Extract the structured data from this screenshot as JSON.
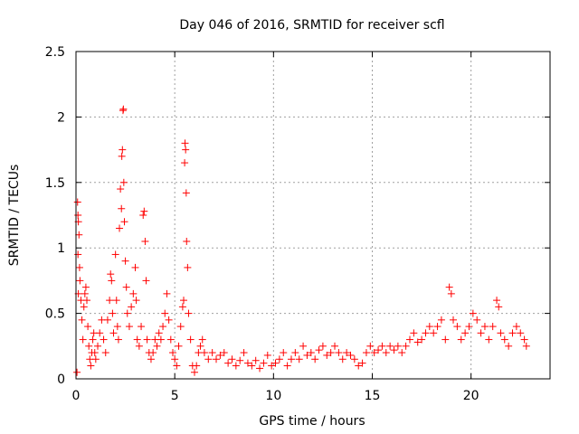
{
  "chart_data": {
    "type": "scatter",
    "title": "Day 046 of 2016, SRMTID for receiver scfl",
    "xlabel": "GPS time / hours",
    "ylabel": "SRMTID / TECUs",
    "xlim": [
      0,
      24
    ],
    "ylim": [
      0,
      2.5
    ],
    "x_ticks": [
      0,
      5,
      10,
      15,
      20
    ],
    "x_tick_labels": [
      "0",
      "5",
      "10",
      "15",
      "20"
    ],
    "y_ticks": [
      0,
      0.5,
      1,
      1.5,
      2,
      2.5
    ],
    "y_tick_labels": [
      "0",
      "0.5",
      "1",
      "1.5",
      "2",
      "2.5"
    ],
    "grid": true,
    "marker": "+",
    "series": [
      {
        "name": "SRMTID",
        "color": "#ff0000",
        "points": [
          [
            0.05,
            0.05
          ],
          [
            0.08,
            1.35
          ],
          [
            0.1,
            1.25
          ],
          [
            0.12,
            1.2
          ],
          [
            0.15,
            1.1
          ],
          [
            0.1,
            0.95
          ],
          [
            0.18,
            0.85
          ],
          [
            0.2,
            0.75
          ],
          [
            0.12,
            0.65
          ],
          [
            0.25,
            0.6
          ],
          [
            0.3,
            0.45
          ],
          [
            0.35,
            0.3
          ],
          [
            0.4,
            0.55
          ],
          [
            0.45,
            0.65
          ],
          [
            0.5,
            0.7
          ],
          [
            0.55,
            0.6
          ],
          [
            0.6,
            0.4
          ],
          [
            0.65,
            0.25
          ],
          [
            0.7,
            0.15
          ],
          [
            0.75,
            0.1
          ],
          [
            0.8,
            0.2
          ],
          [
            0.85,
            0.3
          ],
          [
            0.9,
            0.35
          ],
          [
            0.95,
            0.2
          ],
          [
            1.0,
            0.15
          ],
          [
            1.1,
            0.25
          ],
          [
            1.2,
            0.35
          ],
          [
            1.3,
            0.45
          ],
          [
            1.4,
            0.3
          ],
          [
            1.5,
            0.2
          ],
          [
            1.6,
            0.45
          ],
          [
            1.7,
            0.6
          ],
          [
            1.75,
            0.8
          ],
          [
            1.8,
            0.75
          ],
          [
            1.85,
            0.5
          ],
          [
            1.9,
            0.35
          ],
          [
            2.0,
            0.95
          ],
          [
            2.05,
            0.6
          ],
          [
            2.1,
            0.4
          ],
          [
            2.15,
            0.3
          ],
          [
            2.2,
            1.15
          ],
          [
            2.25,
            1.45
          ],
          [
            2.3,
            1.3
          ],
          [
            2.32,
            1.7
          ],
          [
            2.35,
            1.75
          ],
          [
            2.38,
            2.05
          ],
          [
            2.4,
            2.06
          ],
          [
            2.42,
            1.5
          ],
          [
            2.45,
            1.2
          ],
          [
            2.5,
            0.9
          ],
          [
            2.55,
            0.7
          ],
          [
            2.6,
            0.5
          ],
          [
            2.7,
            0.4
          ],
          [
            2.8,
            0.55
          ],
          [
            2.9,
            0.65
          ],
          [
            3.0,
            0.85
          ],
          [
            3.05,
            0.6
          ],
          [
            3.1,
            0.3
          ],
          [
            3.2,
            0.25
          ],
          [
            3.3,
            0.4
          ],
          [
            3.4,
            1.25
          ],
          [
            3.45,
            1.28
          ],
          [
            3.5,
            1.05
          ],
          [
            3.55,
            0.75
          ],
          [
            3.6,
            0.3
          ],
          [
            3.7,
            0.2
          ],
          [
            3.8,
            0.15
          ],
          [
            3.9,
            0.2
          ],
          [
            4.0,
            0.3
          ],
          [
            4.1,
            0.25
          ],
          [
            4.2,
            0.35
          ],
          [
            4.3,
            0.3
          ],
          [
            4.4,
            0.4
          ],
          [
            4.5,
            0.5
          ],
          [
            4.6,
            0.65
          ],
          [
            4.7,
            0.45
          ],
          [
            4.8,
            0.3
          ],
          [
            4.9,
            0.2
          ],
          [
            5.0,
            0.15
          ],
          [
            5.1,
            0.1
          ],
          [
            5.2,
            0.25
          ],
          [
            5.3,
            0.4
          ],
          [
            5.4,
            0.55
          ],
          [
            5.45,
            0.6
          ],
          [
            5.5,
            1.65
          ],
          [
            5.52,
            1.8
          ],
          [
            5.55,
            1.75
          ],
          [
            5.58,
            1.42
          ],
          [
            5.6,
            1.05
          ],
          [
            5.65,
            0.85
          ],
          [
            5.7,
            0.5
          ],
          [
            5.8,
            0.3
          ],
          [
            5.9,
            0.1
          ],
          [
            6.0,
            0.05
          ],
          [
            6.1,
            0.1
          ],
          [
            6.2,
            0.2
          ],
          [
            6.3,
            0.25
          ],
          [
            6.4,
            0.3
          ],
          [
            6.5,
            0.2
          ],
          [
            6.7,
            0.15
          ],
          [
            6.9,
            0.2
          ],
          [
            7.1,
            0.15
          ],
          [
            7.3,
            0.18
          ],
          [
            7.5,
            0.2
          ],
          [
            7.7,
            0.12
          ],
          [
            7.9,
            0.15
          ],
          [
            8.1,
            0.1
          ],
          [
            8.3,
            0.14
          ],
          [
            8.5,
            0.2
          ],
          [
            8.7,
            0.12
          ],
          [
            8.9,
            0.1
          ],
          [
            9.1,
            0.14
          ],
          [
            9.3,
            0.08
          ],
          [
            9.5,
            0.12
          ],
          [
            9.7,
            0.18
          ],
          [
            9.9,
            0.1
          ],
          [
            10.1,
            0.12
          ],
          [
            10.3,
            0.15
          ],
          [
            10.5,
            0.2
          ],
          [
            10.7,
            0.1
          ],
          [
            10.9,
            0.15
          ],
          [
            11.1,
            0.2
          ],
          [
            11.3,
            0.15
          ],
          [
            11.5,
            0.25
          ],
          [
            11.7,
            0.18
          ],
          [
            11.9,
            0.2
          ],
          [
            12.1,
            0.15
          ],
          [
            12.3,
            0.22
          ],
          [
            12.5,
            0.25
          ],
          [
            12.7,
            0.18
          ],
          [
            12.9,
            0.2
          ],
          [
            13.1,
            0.25
          ],
          [
            13.3,
            0.2
          ],
          [
            13.5,
            0.15
          ],
          [
            13.7,
            0.2
          ],
          [
            13.9,
            0.18
          ],
          [
            14.1,
            0.15
          ],
          [
            14.3,
            0.1
          ],
          [
            14.5,
            0.12
          ],
          [
            14.7,
            0.2
          ],
          [
            14.9,
            0.25
          ],
          [
            15.1,
            0.2
          ],
          [
            15.3,
            0.22
          ],
          [
            15.5,
            0.25
          ],
          [
            15.7,
            0.2
          ],
          [
            15.9,
            0.25
          ],
          [
            16.1,
            0.22
          ],
          [
            16.3,
            0.25
          ],
          [
            16.5,
            0.2
          ],
          [
            16.7,
            0.25
          ],
          [
            16.9,
            0.3
          ],
          [
            17.1,
            0.35
          ],
          [
            17.3,
            0.28
          ],
          [
            17.5,
            0.3
          ],
          [
            17.7,
            0.35
          ],
          [
            17.9,
            0.4
          ],
          [
            18.1,
            0.35
          ],
          [
            18.3,
            0.4
          ],
          [
            18.5,
            0.45
          ],
          [
            18.7,
            0.3
          ],
          [
            18.9,
            0.7
          ],
          [
            19.0,
            0.65
          ],
          [
            19.1,
            0.45
          ],
          [
            19.3,
            0.4
          ],
          [
            19.5,
            0.3
          ],
          [
            19.7,
            0.35
          ],
          [
            19.9,
            0.4
          ],
          [
            20.1,
            0.5
          ],
          [
            20.3,
            0.45
          ],
          [
            20.5,
            0.35
          ],
          [
            20.7,
            0.4
          ],
          [
            20.9,
            0.3
          ],
          [
            21.1,
            0.4
          ],
          [
            21.3,
            0.6
          ],
          [
            21.4,
            0.55
          ],
          [
            21.5,
            0.35
          ],
          [
            21.7,
            0.3
          ],
          [
            21.9,
            0.25
          ],
          [
            22.1,
            0.35
          ],
          [
            22.3,
            0.4
          ],
          [
            22.5,
            0.35
          ],
          [
            22.7,
            0.3
          ],
          [
            22.8,
            0.25
          ]
        ]
      }
    ]
  }
}
